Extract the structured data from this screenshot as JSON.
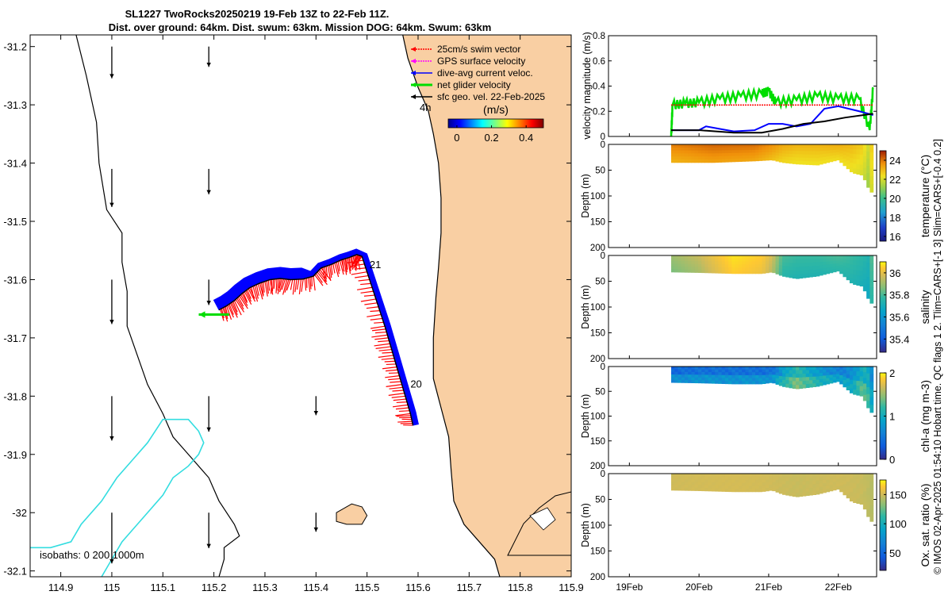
{
  "header": {
    "line1": "SL1227 TwoRocks20250219 19-Feb 13Z to 22-Feb 11Z.",
    "line2": "Dist. over ground: 64km. Dist. swum: 63km. Mission DOG: 64km. Swum: 63km"
  },
  "side_caption": "© IMOS 02-Apr-2025 01:54:10 Hobart time. QC flags 1  2. Tlim=CARS+[-1 3] Slim=CARS+[-0.4 0.2]",
  "colors": {
    "land": "#F9CFA3",
    "coast": "#000000",
    "isobath": "#33DDE0",
    "track": "#000000",
    "swim": "#FF0000",
    "gps": "#FF00FF",
    "current": "#0000FF",
    "net": "#00DD00",
    "sfc": "#000000"
  },
  "chart_data": [
    {
      "type": "map",
      "title": "Glider track map",
      "xlim": [
        114.84,
        115.9
      ],
      "ylim": [
        -32.11,
        -31.18
      ],
      "x_ticks": [
        "114.9",
        "115",
        "115.1",
        "115.2",
        "115.3",
        "115.4",
        "115.5",
        "115.6",
        "115.7",
        "115.8",
        "115.9"
      ],
      "x_tick_values": [
        114.9,
        115,
        115.1,
        115.2,
        115.3,
        115.4,
        115.5,
        115.6,
        115.7,
        115.8,
        115.9
      ],
      "y_ticks": [
        "-31.2",
        "-31.3",
        "-31.4",
        "-31.5",
        "-31.6",
        "-31.7",
        "-31.8",
        "-31.9",
        "-32",
        "-32.1"
      ],
      "y_tick_values": [
        -31.2,
        -31.3,
        -31.4,
        -31.5,
        -31.6,
        -31.7,
        -31.8,
        -31.9,
        -32,
        -32.1
      ],
      "legend": [
        {
          "label": "25cm/s swim vector",
          "color": "#FF0000",
          "style": "dotted"
        },
        {
          "label": "GPS surface velocity",
          "color": "#FF00FF",
          "style": "dotted"
        },
        {
          "label": "dive-avg current veloc.",
          "color": "#0000FF",
          "style": "solid"
        },
        {
          "label": "net glider velocity",
          "color": "#00DD00",
          "style": "solid"
        },
        {
          "label": "sfc geo. vel. 22-Feb-2025",
          "color": "#000000",
          "style": "solid"
        }
      ],
      "colorbar": {
        "label": "(m/s)",
        "ticks": [
          "0",
          "0.2",
          "0.4"
        ],
        "tick_values": [
          0,
          0.2,
          0.4
        ],
        "range": [
          -0.05,
          0.5
        ]
      },
      "time_label": "4h",
      "isobaths_label": "isobaths: 0   200  1000m",
      "annotations": [
        {
          "text": "21",
          "lon": 115.505,
          "lat": -31.58
        },
        {
          "text": "20",
          "lon": 115.585,
          "lat": -31.785
        }
      ],
      "track": [
        [
          115.59,
          -31.85
        ],
        [
          115.585,
          -31.83
        ],
        [
          115.575,
          -31.8
        ],
        [
          115.565,
          -31.77
        ],
        [
          115.555,
          -31.74
        ],
        [
          115.545,
          -31.71
        ],
        [
          115.535,
          -31.68
        ],
        [
          115.52,
          -31.64
        ],
        [
          115.505,
          -31.6
        ],
        [
          115.49,
          -31.56
        ],
        [
          115.48,
          -31.557
        ],
        [
          115.465,
          -31.562
        ],
        [
          115.45,
          -31.566
        ],
        [
          115.43,
          -31.574
        ],
        [
          115.41,
          -31.58
        ],
        [
          115.395,
          -31.594
        ],
        [
          115.375,
          -31.599
        ],
        [
          115.35,
          -31.6
        ],
        [
          115.33,
          -31.598
        ],
        [
          115.31,
          -31.6
        ],
        [
          115.29,
          -31.606
        ],
        [
          115.27,
          -31.614
        ],
        [
          115.255,
          -31.624
        ],
        [
          115.24,
          -31.636
        ],
        [
          115.225,
          -31.645
        ],
        [
          115.21,
          -31.652
        ]
      ],
      "coastline": [
        [
          115.57,
          -31.18
        ],
        [
          115.58,
          -31.22
        ],
        [
          115.6,
          -31.27
        ],
        [
          115.62,
          -31.31
        ],
        [
          115.63,
          -31.35
        ],
        [
          115.64,
          -31.4
        ],
        [
          115.645,
          -31.46
        ],
        [
          115.645,
          -31.52
        ],
        [
          115.64,
          -31.58
        ],
        [
          115.635,
          -31.63
        ],
        [
          115.63,
          -31.7
        ],
        [
          115.63,
          -31.77
        ],
        [
          115.645,
          -31.82
        ],
        [
          115.66,
          -31.87
        ],
        [
          115.665,
          -31.93
        ],
        [
          115.67,
          -31.98
        ],
        [
          115.69,
          -32.02
        ],
        [
          115.72,
          -32.05
        ],
        [
          115.75,
          -32.08
        ],
        [
          115.76,
          -32.11
        ]
      ],
      "coast_inner": [
        [
          114.93,
          -31.18
        ],
        [
          114.95,
          -31.25
        ],
        [
          114.97,
          -31.33
        ],
        [
          114.975,
          -31.4
        ],
        [
          114.99,
          -31.48
        ],
        [
          115.02,
          -31.52
        ],
        [
          115.02,
          -31.57
        ],
        [
          115.03,
          -31.62
        ],
        [
          115.03,
          -31.68
        ],
        [
          115.05,
          -31.73
        ],
        [
          115.07,
          -31.78
        ],
        [
          115.1,
          -31.83
        ],
        [
          115.12,
          -31.87
        ],
        [
          115.15,
          -31.9
        ],
        [
          115.19,
          -31.94
        ],
        [
          115.21,
          -31.98
        ],
        [
          115.24,
          -32.02
        ],
        [
          115.25,
          -32.04
        ],
        [
          115.22,
          -32.06
        ],
        [
          115.22,
          -32.08
        ],
        [
          115.21,
          -32.11
        ]
      ],
      "isobath_1000": [
        [
          114.84,
          -32.06
        ],
        [
          114.88,
          -32.06
        ],
        [
          114.92,
          -32.05
        ],
        [
          114.94,
          -32.02
        ],
        [
          114.98,
          -31.98
        ],
        [
          115.01,
          -31.94
        ],
        [
          115.04,
          -31.91
        ],
        [
          115.07,
          -31.88
        ],
        [
          115.085,
          -31.86
        ],
        [
          115.1,
          -31.84
        ],
        [
          115.12,
          -31.84
        ],
        [
          115.15,
          -31.84
        ],
        [
          115.17,
          -31.86
        ],
        [
          115.18,
          -31.88
        ],
        [
          115.17,
          -31.9
        ],
        [
          115.15,
          -31.92
        ],
        [
          115.12,
          -31.94
        ],
        [
          115.1,
          -31.97
        ],
        [
          115.07,
          -32
        ],
        [
          115.04,
          -32.03
        ],
        [
          115.02,
          -32.05
        ],
        [
          115.0,
          -32.08
        ],
        [
          114.98,
          -32.11
        ]
      ],
      "rottnest": [
        [
          115.44,
          -32.0
        ],
        [
          115.47,
          -31.985
        ],
        [
          115.49,
          -31.99
        ],
        [
          115.5,
          -32.005
        ],
        [
          115.49,
          -32.02
        ],
        [
          115.46,
          -32.02
        ],
        [
          115.44,
          -32.015
        ]
      ],
      "sfc_arrows": [
        {
          "lon": 115.0,
          "lat": -31.2,
          "u": 0.0,
          "v": -0.25
        },
        {
          "lon": 115.19,
          "lat": -31.2,
          "u": 0.0,
          "v": -0.16
        },
        {
          "lon": 115.0,
          "lat": -31.41,
          "u": 0.0,
          "v": -0.3
        },
        {
          "lon": 115.19,
          "lat": -31.41,
          "u": 0.0,
          "v": -0.2
        },
        {
          "lon": 115.0,
          "lat": -31.6,
          "u": 0.0,
          "v": -0.35
        },
        {
          "lon": 115.19,
          "lat": -31.6,
          "u": 0.0,
          "v": -0.2
        },
        {
          "lon": 115.0,
          "lat": -31.8,
          "u": 0.0,
          "v": -0.35
        },
        {
          "lon": 115.19,
          "lat": -31.8,
          "u": 0.0,
          "v": -0.28
        },
        {
          "lon": 115.4,
          "lat": -31.8,
          "u": 0.0,
          "v": -0.15
        },
        {
          "lon": 115.0,
          "lat": -32.0,
          "u": 0.0,
          "v": -0.4
        },
        {
          "lon": 115.19,
          "lat": -32.0,
          "u": 0.0,
          "v": -0.28
        },
        {
          "lon": 115.4,
          "lat": -32.0,
          "u": 0.0,
          "v": -0.15
        }
      ],
      "net_velocity_arrow": {
        "lon": 115.23,
        "lat": -31.66,
        "u": -0.4,
        "v": 0.0
      }
    },
    {
      "type": "line",
      "ylabel": "velocity magnitude (m/s)",
      "ylim": [
        0,
        0.8
      ],
      "y_ticks": [
        "0",
        "0.2",
        "0.4",
        "0.6",
        "0.8"
      ],
      "y_tick_values": [
        0,
        0.2,
        0.4,
        0.6,
        0.8
      ],
      "xlim": [
        18.7,
        22.55
      ],
      "series": [
        {
          "name": "net glider velocity",
          "color": "#00DD00",
          "x": [
            19.6,
            19.62,
            19.8,
            20.0,
            20.3,
            20.6,
            20.9,
            21.0,
            21.1,
            21.4,
            21.7,
            22.0,
            22.3,
            22.45,
            22.5
          ],
          "values": [
            0.0,
            0.25,
            0.26,
            0.27,
            0.3,
            0.32,
            0.34,
            0.36,
            0.27,
            0.29,
            0.32,
            0.3,
            0.3,
            0.05,
            0.39
          ]
        },
        {
          "name": "dive-avg current veloc.",
          "color": "#0000FF",
          "x": [
            19.6,
            19.8,
            20.0,
            20.1,
            20.3,
            20.5,
            20.8,
            21.0,
            21.2,
            21.4,
            21.6,
            21.8,
            22.0,
            22.3,
            22.5
          ],
          "values": [
            0.05,
            0.05,
            0.05,
            0.08,
            0.06,
            0.04,
            0.05,
            0.1,
            0.1,
            0.08,
            0.1,
            0.22,
            0.24,
            0.2,
            0.17
          ]
        },
        {
          "name": "25cm/s swim vector",
          "color": "#FF0000",
          "x": [
            19.6,
            22.5
          ],
          "values": [
            0.25,
            0.25
          ]
        },
        {
          "name": "sfc geo. vel.",
          "color": "#000000",
          "x": [
            19.6,
            20.0,
            20.5,
            20.9,
            21.2,
            21.5,
            21.8,
            22.1,
            22.5
          ],
          "values": [
            0.05,
            0.05,
            0.03,
            0.03,
            0.06,
            0.1,
            0.12,
            0.15,
            0.18
          ]
        }
      ]
    },
    {
      "type": "heatmap",
      "ylabel": "Depth (m)",
      "colorbar_label": "temperature (°C)",
      "ylim": [
        200,
        0
      ],
      "y_ticks": [
        "0",
        "50",
        "100",
        "150",
        "200"
      ],
      "y_tick_values": [
        0,
        50,
        100,
        150,
        200
      ],
      "clim": [
        15.5,
        25
      ],
      "cbar_ticks": [
        "16",
        "18",
        "20",
        "22",
        "24"
      ],
      "cbar_tick_values": [
        16,
        18,
        20,
        22,
        24
      ],
      "profile_x": [
        19.6,
        20.2,
        20.8,
        21.05,
        21.2,
        21.4,
        21.7,
        22.0,
        22.2,
        22.35,
        22.45,
        22.5
      ],
      "profile_depth": [
        35,
        35,
        32,
        30,
        35,
        38,
        40,
        30,
        55,
        60,
        90,
        95
      ],
      "column_values": [
        23.8,
        24.1,
        24.0,
        23.6,
        23.2,
        23.0,
        23.0,
        23.1,
        22.9,
        22.6,
        21.5,
        23.5
      ]
    },
    {
      "type": "heatmap",
      "ylabel": "Depth (m)",
      "colorbar_label": "salinity",
      "ylim": [
        200,
        0
      ],
      "y_ticks": [
        "0",
        "50",
        "100",
        "150",
        "200"
      ],
      "y_tick_values": [
        0,
        50,
        100,
        150,
        200
      ],
      "clim": [
        35.28,
        36.1
      ],
      "cbar_ticks": [
        "35.4",
        "35.6",
        "35.8",
        "36"
      ],
      "cbar_tick_values": [
        35.4,
        35.6,
        35.8,
        36
      ],
      "profile_x": [
        19.6,
        20.0,
        20.5,
        20.9,
        21.05,
        21.2,
        21.4,
        21.7,
        22.0,
        22.2,
        22.35,
        22.45,
        22.5
      ],
      "profile_depth": [
        32,
        33,
        35,
        35,
        32,
        40,
        45,
        40,
        30,
        55,
        60,
        90,
        95
      ],
      "column_values": [
        35.82,
        35.88,
        36.05,
        36.0,
        35.9,
        35.72,
        35.7,
        35.7,
        35.72,
        35.7,
        35.68,
        35.65,
        35.8
      ]
    },
    {
      "type": "heatmap",
      "ylabel": "Depth (m)",
      "colorbar_label": "chl-a (mg m-3)",
      "ylim": [
        200,
        0
      ],
      "y_ticks": [
        "0",
        "50",
        "100",
        "150",
        "200"
      ],
      "y_tick_values": [
        0,
        50,
        100,
        150,
        200
      ],
      "clim": [
        0,
        2
      ],
      "cbar_ticks": [
        "0",
        "1",
        "2"
      ],
      "cbar_tick_values": [
        0,
        1,
        2
      ],
      "profile_x": [
        19.6,
        20.0,
        20.5,
        20.9,
        21.05,
        21.2,
        21.4,
        21.7,
        22.0,
        22.2,
        22.35,
        22.45,
        22.5
      ],
      "profile_depth": [
        32,
        33,
        35,
        35,
        32,
        40,
        45,
        40,
        30,
        55,
        60,
        90,
        95
      ],
      "column_values": [
        0.25,
        0.3,
        0.3,
        0.3,
        0.3,
        0.6,
        0.9,
        0.6,
        0.4,
        0.5,
        0.8,
        0.7,
        0.3
      ]
    },
    {
      "type": "heatmap",
      "ylabel": "Depth (m)",
      "colorbar_label": "Ox. sat. ratio (%)",
      "xlim": [
        18.7,
        22.55
      ],
      "ylim": [
        200,
        0
      ],
      "y_ticks": [
        "0",
        "50",
        "100",
        "150",
        "200"
      ],
      "y_tick_values": [
        0,
        50,
        100,
        150,
        200
      ],
      "x_ticks": [
        "19Feb",
        "20Feb",
        "21Feb",
        "22Feb"
      ],
      "x_tick_values": [
        19,
        20,
        21,
        22
      ],
      "clim": [
        20,
        175
      ],
      "cbar_ticks": [
        "50",
        "100",
        "150"
      ],
      "cbar_tick_values": [
        50,
        100,
        150
      ],
      "profile_x": [
        19.6,
        20.0,
        20.5,
        20.9,
        21.05,
        21.2,
        21.4,
        21.7,
        22.0,
        22.2,
        22.35,
        22.45,
        22.5
      ],
      "profile_depth": [
        32,
        33,
        35,
        35,
        32,
        40,
        45,
        40,
        30,
        55,
        60,
        90,
        95
      ],
      "column_values": [
        135,
        136,
        137,
        136,
        135,
        134,
        133,
        134,
        135,
        134,
        133,
        130,
        128
      ]
    }
  ]
}
